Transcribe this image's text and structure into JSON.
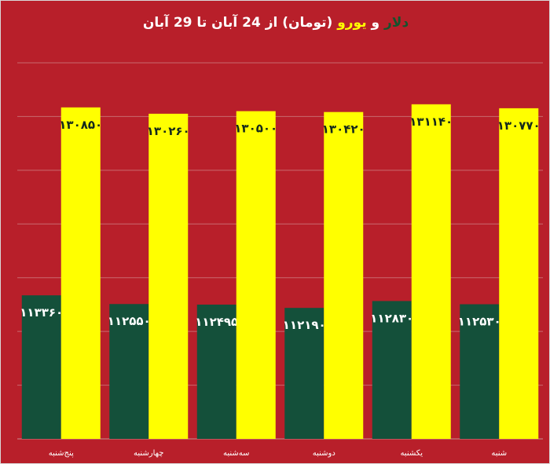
{
  "title": {
    "dollar": "دلار",
    "and": " و ",
    "euro": "یورو",
    "rest": " (تومان) از 24 آبان تا 29 آبان"
  },
  "colors": {
    "background": "#b81f2a",
    "dollar": "#14503a",
    "euro": "#ffff00",
    "gridline": "#c96a6f",
    "axis": "#c98f93"
  },
  "chart_data": {
    "type": "bar",
    "categories": [
      "پنج‌شنبه",
      "چهارشنبه",
      "سه‌شنبه",
      "دوشنبه",
      "یکشنبه",
      "شنبه"
    ],
    "series": [
      {
        "name": "دلار",
        "values": [
          113360,
          112550,
          112495,
          112190,
          112830,
          112530
        ],
        "labels": [
          "۱۱۳۳۶۰",
          "۱۱۲۵۵۰",
          "۱۱۲۴۹۵",
          "۱۱۲۱۹۰",
          "۱۱۲۸۳۰",
          "۱۱۲۵۳۰"
        ]
      },
      {
        "name": "یورو",
        "values": [
          130850,
          130260,
          130500,
          130420,
          131140,
          130770
        ],
        "labels": [
          "۱۳۰۸۵۰",
          "۱۳۰۲۶۰",
          "۱۳۰۵۰۰",
          "۱۳۰۴۲۰",
          "۱۳۱۱۴۰",
          "۱۳۰۷۷۰"
        ]
      }
    ],
    "ylim": [
      100000,
      135000
    ],
    "grid": true,
    "legend": "none"
  }
}
